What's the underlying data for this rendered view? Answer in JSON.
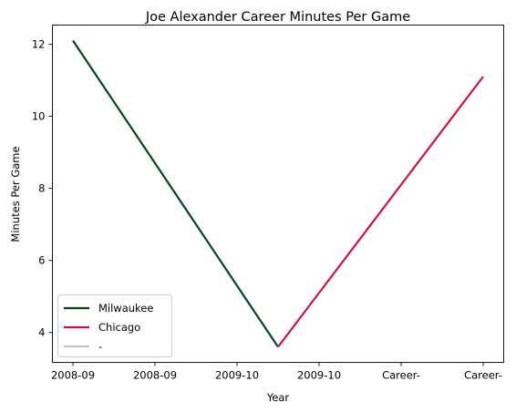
{
  "chart_data": {
    "type": "line",
    "title": "Joe Alexander Career Minutes Per Game",
    "xlabel": "Year",
    "ylabel": "Minutes Per Game",
    "x_tick_labels": [
      "2008-09",
      "2008-09",
      "2009-10",
      "2009-10",
      "Career-",
      "Career-"
    ],
    "yticks": [
      4,
      6,
      8,
      10,
      12
    ],
    "ylim": [
      3.17,
      12.53
    ],
    "xlim": [
      -0.25,
      5.25
    ],
    "grid": false,
    "legend_placement": "lower-left",
    "series": [
      {
        "name": "Milwaukee",
        "color": "#00471b",
        "x": [
          0,
          2.5
        ],
        "y": [
          12.1,
          3.6
        ]
      },
      {
        "name": "Chicago",
        "color": "#ce1141",
        "x": [
          2.5,
          5
        ],
        "y": [
          3.6,
          11.1
        ]
      },
      {
        "name": "-",
        "color": "#c4c4c4",
        "x": [],
        "y": []
      }
    ]
  }
}
